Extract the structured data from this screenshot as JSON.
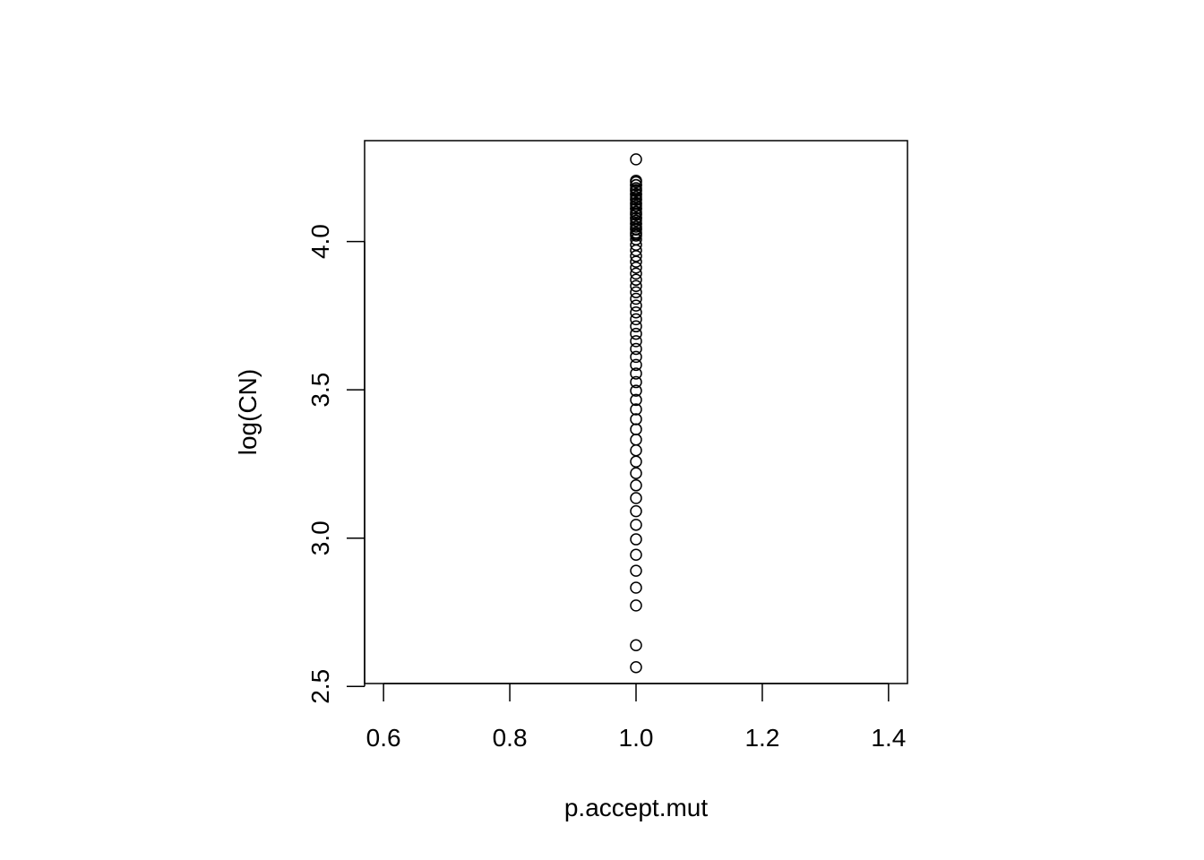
{
  "chart_data": {
    "type": "scatter",
    "xlabel": "p.accept.mut",
    "ylabel": "log(CN)",
    "xlim": [
      0.57,
      1.43
    ],
    "ylim": [
      2.51,
      4.34
    ],
    "x_ticks": [
      0.6,
      0.8,
      1.0,
      1.2,
      1.4
    ],
    "x_tick_labels": [
      "0.6",
      "0.8",
      "1.0",
      "1.2",
      "1.4"
    ],
    "y_ticks": [
      2.5,
      3.0,
      3.5,
      4.0
    ],
    "y_tick_labels": [
      "2.5",
      "3.0",
      "3.5",
      "4.0"
    ],
    "grid": false,
    "marker": "open-circle",
    "series": [
      {
        "x": [
          1,
          1,
          1,
          1,
          1,
          1,
          1,
          1,
          1,
          1,
          1,
          1,
          1,
          1,
          1,
          1,
          1,
          1,
          1,
          1,
          1,
          1,
          1,
          1,
          1,
          1,
          1,
          1,
          1,
          1,
          1,
          1,
          1,
          1,
          1,
          1,
          1,
          1,
          1,
          1,
          1,
          1,
          1,
          1,
          1,
          1,
          1,
          1,
          1,
          1,
          1,
          1,
          1,
          1,
          1,
          1,
          1,
          1,
          1,
          1,
          1,
          1,
          1,
          1,
          1,
          1,
          1,
          1,
          1,
          1,
          1,
          1,
          1,
          1
        ],
        "y": [
          2.565,
          2.639,
          2.773,
          2.833,
          2.89,
          2.944,
          2.996,
          3.045,
          3.091,
          3.135,
          3.178,
          3.219,
          3.258,
          3.296,
          3.332,
          3.367,
          3.401,
          3.434,
          3.466,
          3.497,
          3.526,
          3.555,
          3.584,
          3.611,
          3.638,
          3.664,
          3.689,
          3.714,
          3.738,
          3.761,
          3.784,
          3.807,
          3.829,
          3.85,
          3.871,
          3.892,
          3.912,
          3.932,
          3.951,
          3.97,
          3.989,
          4.007,
          4.025,
          4.043,
          4.06,
          4.078,
          4.094,
          4.111,
          4.127,
          4.143,
          4.159,
          4.174,
          4.19,
          4.205,
          4.277,
          4.06,
          4.07,
          4.08,
          4.09,
          4.1,
          4.11,
          4.12,
          4.13,
          4.14,
          4.15,
          4.16,
          4.17,
          4.18,
          4.19,
          4.2,
          4.03,
          4.04,
          4.05,
          4.02
        ]
      }
    ]
  }
}
